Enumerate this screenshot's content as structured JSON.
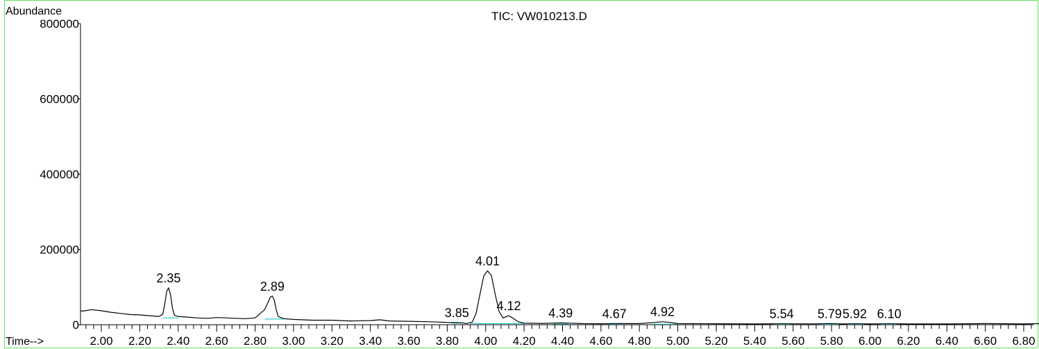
{
  "chart_data": {
    "type": "line",
    "title": "TIC: VW010213.D",
    "ylabel": "Abundance",
    "xlabel": "Time-->",
    "xlim": [
      1.86,
      6.94
    ],
    "ylim": [
      0,
      800000
    ],
    "x_ticks": [
      2.0,
      2.2,
      2.4,
      2.6,
      2.8,
      3.0,
      3.2,
      3.4,
      3.6,
      3.8,
      4.0,
      4.2,
      4.4,
      4.6,
      4.8,
      5.0,
      5.2,
      5.4,
      5.6,
      5.8,
      6.0,
      6.2,
      6.4,
      6.6,
      6.8
    ],
    "x_tick_labels": [
      "2.00",
      "2.20",
      "2.40",
      "2.60",
      "2.80",
      "3.00",
      "3.20",
      "3.40",
      "3.60",
      "3.80",
      "4.00",
      "4.20",
      "4.40",
      "4.60",
      "4.80",
      "5.00",
      "5.20",
      "5.40",
      "5.60",
      "5.80",
      "6.00",
      "6.20",
      "6.40",
      "6.60",
      "6.80"
    ],
    "y_ticks": [
      0,
      200000,
      400000,
      600000,
      800000
    ],
    "y_tick_labels": [
      "0",
      "200000",
      "400000",
      "600000",
      "800000"
    ],
    "grid": false,
    "series": [
      {
        "x": [
          1.86,
          1.9,
          1.95,
          2.0,
          2.05,
          2.1,
          2.15,
          2.2,
          2.25,
          2.3,
          2.32,
          2.33,
          2.34,
          2.35,
          2.36,
          2.37,
          2.38,
          2.4,
          2.45,
          2.5,
          2.55,
          2.6,
          2.65,
          2.7,
          2.75,
          2.8,
          2.85,
          2.87,
          2.88,
          2.89,
          2.9,
          2.91,
          2.92,
          2.95,
          3.0,
          3.1,
          3.2,
          3.3,
          3.4,
          3.45,
          3.5,
          3.6,
          3.7,
          3.75,
          3.8,
          3.85,
          3.88,
          3.9,
          3.93,
          3.95,
          3.97,
          3.99,
          4.01,
          4.03,
          4.05,
          4.07,
          4.09,
          4.11,
          4.12,
          4.14,
          4.17,
          4.2,
          4.3,
          4.39,
          4.5,
          4.6,
          4.67,
          4.8,
          4.88,
          4.92,
          4.96,
          5.0,
          5.2,
          5.4,
          5.54,
          5.7,
          5.79,
          5.85,
          5.92,
          6.0,
          6.1,
          6.2,
          6.4,
          6.6,
          6.8,
          6.9,
          6.94
        ],
        "y": [
          38000,
          36000,
          40000,
          37000,
          33000,
          30000,
          27000,
          26000,
          24000,
          22000,
          28000,
          55000,
          88000,
          98000,
          80000,
          45000,
          25000,
          22000,
          20000,
          18000,
          17000,
          19000,
          18000,
          17000,
          16000,
          18000,
          40000,
          62000,
          74000,
          76000,
          65000,
          40000,
          22000,
          16000,
          14000,
          12000,
          12000,
          10000,
          11000,
          13000,
          10000,
          9000,
          8000,
          7000,
          6000,
          5500,
          5000,
          3000,
          7000,
          30000,
          80000,
          130000,
          143000,
          130000,
          80000,
          35000,
          18000,
          22000,
          24000,
          18000,
          8000,
          4000,
          3500,
          5000,
          3000,
          2500,
          3000,
          3000,
          6000,
          8000,
          6000,
          3000,
          2500,
          2000,
          2500,
          2200,
          3000,
          2000,
          2500,
          2000,
          2500,
          2000,
          2000,
          3000,
          2000,
          3000,
          9000
        ]
      }
    ],
    "peak_labels": [
      {
        "x": 2.35,
        "y": 98000,
        "text": "2.35"
      },
      {
        "x": 2.89,
        "y": 76000,
        "text": "2.89"
      },
      {
        "x": 3.85,
        "y": 5500,
        "text": "3.85"
      },
      {
        "x": 4.01,
        "y": 143000,
        "text": "4.01"
      },
      {
        "x": 4.12,
        "y": 24000,
        "text": "4.12"
      },
      {
        "x": 4.39,
        "y": 5000,
        "text": "4.39"
      },
      {
        "x": 4.67,
        "y": 3000,
        "text": "4.67"
      },
      {
        "x": 4.92,
        "y": 8000,
        "text": "4.92"
      },
      {
        "x": 5.54,
        "y": 2500,
        "text": "5.54"
      },
      {
        "x": 5.79,
        "y": 3000,
        "text": "5.79"
      },
      {
        "x": 5.92,
        "y": 2500,
        "text": "5.92"
      },
      {
        "x": 6.1,
        "y": 2500,
        "text": "6.10"
      }
    ],
    "integration_baselines": [
      {
        "x": [
          2.32,
          2.4
        ],
        "y": [
          18000,
          18000
        ]
      },
      {
        "x": [
          2.85,
          2.95
        ],
        "y": [
          15000,
          15000
        ]
      },
      {
        "x": [
          3.82,
          3.88
        ],
        "y": [
          4000,
          4000
        ]
      },
      {
        "x": [
          3.92,
          4.09
        ],
        "y": [
          3000,
          3000
        ]
      },
      {
        "x": [
          4.09,
          4.2
        ],
        "y": [
          3000,
          3000
        ]
      },
      {
        "x": [
          4.35,
          4.43
        ],
        "y": [
          2000,
          2000
        ]
      },
      {
        "x": [
          4.64,
          4.7
        ],
        "y": [
          1500,
          1500
        ]
      },
      {
        "x": [
          4.86,
          5.0
        ],
        "y": [
          1500,
          1500
        ]
      },
      {
        "x": [
          5.5,
          5.58
        ],
        "y": [
          1000,
          1000
        ]
      },
      {
        "x": [
          5.75,
          5.84
        ],
        "y": [
          1000,
          1000
        ]
      },
      {
        "x": [
          5.88,
          5.97
        ],
        "y": [
          1000,
          1000
        ]
      },
      {
        "x": [
          6.06,
          6.14
        ],
        "y": [
          1000,
          1000
        ]
      }
    ],
    "colors": {
      "trace": "#000000",
      "baseline": "#33cccc",
      "frame": "#5ee05e"
    }
  }
}
